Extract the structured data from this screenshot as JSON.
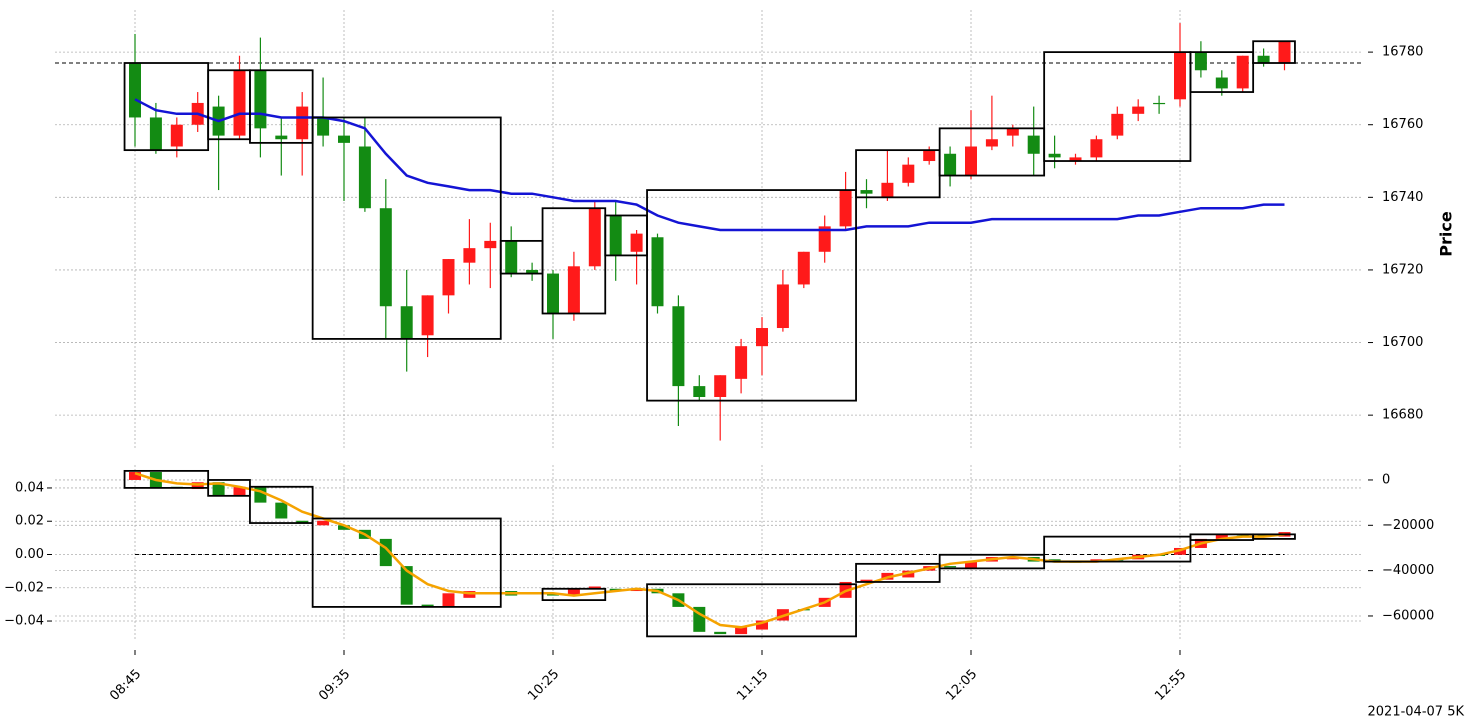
{
  "chart_data": [
    {
      "type": "candlestick",
      "ylabel": "Price",
      "grid": true,
      "up_color": "#ff1a1a",
      "down_color": "#138b13",
      "ylim": [
        16670.4,
        16791.6
      ],
      "yticks": [
        16680,
        16700,
        16720,
        16740,
        16760,
        16780
      ],
      "open": [
        16777,
        16762,
        16754,
        16760,
        16765,
        16757,
        16775,
        16757,
        16756,
        16762,
        16757,
        16754,
        16737,
        16710,
        16702,
        16713,
        16722,
        16726,
        16728,
        16720,
        16719,
        16708,
        16721,
        16735,
        16725,
        16729,
        16710,
        16688,
        16685,
        16690,
        16699,
        16704,
        16716,
        16725,
        16732,
        16742,
        16740,
        16744,
        16750,
        16752,
        16746,
        16754,
        16757,
        16757,
        16752,
        16750,
        16751,
        16757,
        16763,
        16766,
        16767,
        16780,
        16773,
        16770,
        16779,
        16777
      ],
      "high": [
        16785,
        16766,
        16762,
        16769,
        16768,
        16779,
        16784,
        16762,
        16769,
        16773,
        16762,
        16762,
        16745,
        16720,
        16713,
        16723,
        16734,
        16733,
        16732,
        16722,
        16720,
        16725,
        16739,
        16739,
        16731,
        16730,
        16713,
        16691,
        16691,
        16701,
        16707,
        16720,
        16725,
        16735,
        16747,
        16745,
        16753,
        16751,
        16754,
        16754,
        16764,
        16768,
        16760,
        16765,
        16757,
        16752,
        16757,
        16765,
        16767,
        16768,
        16788,
        16783,
        16775,
        16779,
        16781,
        16783
      ],
      "low": [
        16754,
        16752,
        16751,
        16758,
        16742,
        16756,
        16751,
        16746,
        16746,
        16754,
        16739,
        16736,
        16701,
        16692,
        16696,
        16708,
        16716,
        16715,
        16718,
        16717,
        16701,
        16706,
        16720,
        16717,
        16716,
        16708,
        16677,
        16684,
        16673,
        16686,
        16691,
        16703,
        16715,
        16722,
        16731,
        16737,
        16739,
        16743,
        16749,
        16743,
        16745,
        16753,
        16754,
        16746,
        16748,
        16749,
        16750,
        16756,
        16761,
        16763,
        16765,
        16773,
        16768,
        16769,
        16776,
        16775
      ],
      "close": [
        16762,
        16753,
        16760,
        16766,
        16757,
        16775,
        16759,
        16756,
        16765,
        16757,
        16755,
        16737,
        16710,
        16701,
        16713,
        16723,
        16726,
        16728,
        16719,
        16719,
        16708,
        16721,
        16737,
        16724,
        16730,
        16710,
        16688,
        16685,
        16691,
        16699,
        16704,
        16716,
        16725,
        16732,
        16742,
        16741,
        16744,
        16749,
        16753,
        16746,
        16754,
        16756,
        16759,
        16752,
        16751,
        16751,
        16756,
        16763,
        16765,
        16766,
        16780,
        16775,
        16770,
        16779,
        16777,
        16783
      ],
      "lines": [
        {
          "color": "#1414d4",
          "values": [
            16767,
            16764,
            16763,
            16763,
            16761,
            16763,
            16763,
            16762,
            16762,
            16762,
            16761,
            16759,
            16752,
            16746,
            16744,
            16743,
            16742,
            16742,
            16741,
            16741,
            16740,
            16739,
            16739,
            16739,
            16738,
            16735,
            16733,
            16732,
            16731,
            16731,
            16731,
            16731,
            16731,
            16731,
            16731,
            16732,
            16732,
            16732,
            16733,
            16733,
            16733,
            16734,
            16734,
            16734,
            16734,
            16734,
            16734,
            16734,
            16735,
            16735,
            16736,
            16737,
            16737,
            16737,
            16738,
            16738
          ]
        }
      ],
      "hlines": [
        16777
      ],
      "boxes": [
        {
          "start": 0,
          "end": 3,
          "top": 16777,
          "bottom": 16753
        },
        {
          "start": 4,
          "end": 5,
          "top": 16775,
          "bottom": 16756
        },
        {
          "start": 6,
          "end": 8,
          "top": 16775,
          "bottom": 16755
        },
        {
          "start": 9,
          "end": 17,
          "top": 16762,
          "bottom": 16701
        },
        {
          "start": 18,
          "end": 19,
          "top": 16728,
          "bottom": 16719
        },
        {
          "start": 20,
          "end": 22,
          "top": 16737,
          "bottom": 16708
        },
        {
          "start": 23,
          "end": 24,
          "top": 16735,
          "bottom": 16724
        },
        {
          "start": 25,
          "end": 34,
          "top": 16742,
          "bottom": 16684
        },
        {
          "start": 35,
          "end": 38,
          "top": 16753,
          "bottom": 16740
        },
        {
          "start": 39,
          "end": 43,
          "top": 16759,
          "bottom": 16746
        },
        {
          "start": 44,
          "end": 50,
          "top": 16780,
          "bottom": 16750
        },
        {
          "start": 51,
          "end": 53,
          "top": 16780,
          "bottom": 16769
        },
        {
          "start": 54,
          "end": 55,
          "top": 16783,
          "bottom": 16777
        }
      ]
    },
    {
      "type": "candlestick",
      "grid": true,
      "up_color": "#ff1a1a",
      "down_color": "#138b13",
      "categories": [
        "08:45",
        null,
        null,
        null,
        null,
        null,
        null,
        null,
        null,
        null,
        "09:35",
        null,
        null,
        null,
        null,
        null,
        null,
        null,
        null,
        null,
        "10:25",
        null,
        null,
        null,
        null,
        null,
        null,
        null,
        null,
        null,
        "11:15",
        null,
        null,
        null,
        null,
        null,
        null,
        null,
        null,
        null,
        "12:05",
        null,
        null,
        null,
        null,
        null,
        null,
        null,
        null,
        null,
        "12:55",
        null,
        null,
        null,
        null,
        null
      ],
      "ylim": [
        -70600,
        6600
      ],
      "yticks": [
        0,
        {
          "value": -20000,
          "label": "−20000"
        },
        {
          "value": -40000,
          "label": "−40000"
        },
        {
          "value": -60000,
          "label": "−60000"
        }
      ],
      "y2lim": [
        -0.0514,
        0.0538
      ],
      "y2ticks": [
        0.04,
        0.02,
        {
          "value": 0,
          "label": "0.00"
        },
        {
          "value": -0.02,
          "label": "−0.02"
        },
        {
          "value": -0.04,
          "label": "−0.04"
        }
      ],
      "open": [
        0,
        3500,
        -3000,
        -4000,
        -1000,
        -7000,
        -3000,
        -10000,
        -18000,
        -20000,
        -20000,
        -22000,
        -26000,
        -38000,
        -55000,
        -56000,
        -52000,
        -50000,
        -49000,
        -50000,
        -50000,
        -51000,
        -48000,
        -48000,
        -49000,
        -48000,
        -50000,
        -56000,
        -67000,
        -68000,
        -66000,
        -62000,
        -57000,
        -56000,
        -52000,
        -45000,
        -44000,
        -43000,
        -40000,
        -38000,
        -39000,
        -36000,
        -35000,
        -34000,
        -35000,
        -36000,
        -36000,
        -35000,
        -35000,
        -33000,
        -33000,
        -30000,
        -26000,
        -24000,
        -24000,
        -25000
      ],
      "close": [
        3500,
        -3500,
        -3000,
        -1000,
        -7000,
        -3000,
        -10000,
        -17000,
        -19000,
        -18000,
        -22000,
        -26000,
        -38000,
        -55000,
        -56000,
        -50000,
        -49000,
        -50000,
        -51000,
        -50000,
        -51000,
        -48000,
        -47000,
        -49000,
        -48000,
        -50000,
        -56000,
        -67000,
        -68000,
        -65000,
        -62000,
        -57000,
        -57000,
        -52000,
        -45000,
        -44000,
        -41000,
        -40000,
        -38000,
        -38000,
        -36000,
        -34000,
        -34000,
        -36000,
        -36000,
        -36000,
        -35000,
        -35000,
        -33000,
        -33000,
        -30000,
        -26000,
        -24000,
        -24000,
        -24000,
        -23000
      ],
      "lines": [
        {
          "color": "#f5a300",
          "values": [
            3000,
            0,
            -1500,
            -2000,
            -1500,
            -3000,
            -5000,
            -9000,
            -14000,
            -17000,
            -20000,
            -24000,
            -30000,
            -40000,
            -46000,
            -49000,
            -50000,
            -50000,
            -50000,
            -50000,
            -50000,
            -51000,
            -50000,
            -49000,
            -48000,
            -49000,
            -53000,
            -59000,
            -64000,
            -65000,
            -63000,
            -60000,
            -57000,
            -54000,
            -49000,
            -46000,
            -43000,
            -41000,
            -39000,
            -37000,
            -36000,
            -35000,
            -34000,
            -35000,
            -36000,
            -36000,
            -36000,
            -35000,
            -34000,
            -33000,
            -31000,
            -28000,
            -26000,
            -25000,
            -25000,
            -24000
          ]
        }
      ],
      "hlines_y2": [
        0
      ],
      "boxes": [
        {
          "start": 0,
          "end": 3,
          "top": 4000,
          "bottom": -3500
        },
        {
          "start": 4,
          "end": 5,
          "top": 0,
          "bottom": -7000
        },
        {
          "start": 6,
          "end": 8,
          "top": -3000,
          "bottom": -19000
        },
        {
          "start": 9,
          "end": 17,
          "top": -17000,
          "bottom": -56000
        },
        {
          "start": 20,
          "end": 22,
          "top": -48000,
          "bottom": -53000
        },
        {
          "start": 25,
          "end": 34,
          "top": -46000,
          "bottom": -69000
        },
        {
          "start": 35,
          "end": 38,
          "top": -37000,
          "bottom": -45000
        },
        {
          "start": 39,
          "end": 43,
          "top": -33000,
          "bottom": -39000
        },
        {
          "start": 44,
          "end": 50,
          "top": -25000,
          "bottom": -36000
        },
        {
          "start": 51,
          "end": 53,
          "top": -24000,
          "bottom": -26500
        },
        {
          "start": 54,
          "end": 55,
          "top": -24000,
          "bottom": -26000
        }
      ],
      "annotation": "2021-04-07 5K"
    }
  ]
}
